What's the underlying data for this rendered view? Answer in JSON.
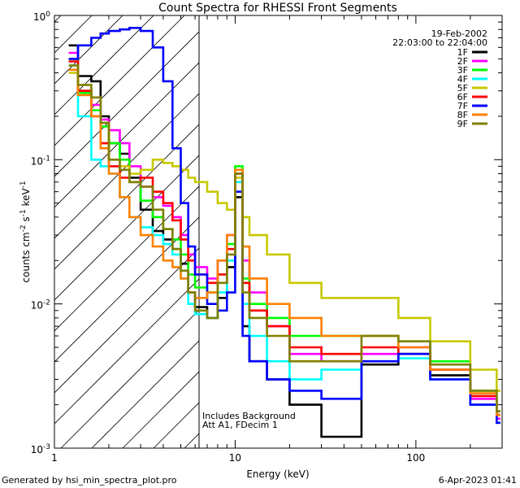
{
  "chart_data": {
    "type": "line",
    "title": "Count Spectra for RHESSI Front Segments",
    "xlabel": "Energy (keV)",
    "ylabel_parts": {
      "base": "counts cm",
      "exp1": "-2",
      "mid1": " s",
      "exp2": "-1",
      "mid2": " keV",
      "exp3": "-1"
    },
    "xscale": "log",
    "yscale": "log",
    "xlim": [
      1,
      300
    ],
    "ylim": [
      0.001,
      1
    ],
    "x_ticks": [
      {
        "value": 1,
        "label": "1"
      },
      {
        "value": 10,
        "label": "10"
      },
      {
        "value": 100,
        "label": "100"
      }
    ],
    "y_ticks": [
      {
        "value": 1,
        "base": "10",
        "exp": "0"
      },
      {
        "value": 0.1,
        "base": "10",
        "exp": "-1"
      },
      {
        "value": 0.01,
        "base": "10",
        "exp": "-2"
      },
      {
        "value": 0.001,
        "base": "10",
        "exp": "-3"
      }
    ],
    "shaded_region": {
      "x_from": 1,
      "x_to": 6
    },
    "legend": {
      "date": "19-Feb-2002",
      "time_range": "22:03:00 to 22:04:00",
      "position": "top-right"
    },
    "series": [
      {
        "name": "1F",
        "color": "#000000",
        "points": [
          [
            1.2,
            0.62
          ],
          [
            1.35,
            0.38
          ],
          [
            1.6,
            0.35
          ],
          [
            1.8,
            0.2
          ],
          [
            2.0,
            0.13
          ],
          [
            2.3,
            0.11
          ],
          [
            2.6,
            0.075
          ],
          [
            3.0,
            0.045
          ],
          [
            3.5,
            0.032
          ],
          [
            4.0,
            0.028
          ],
          [
            4.5,
            0.024
          ],
          [
            5.0,
            0.019
          ],
          [
            5.5,
            0.012
          ],
          [
            6.0,
            0.0095
          ],
          [
            7,
            0.008
          ],
          [
            8,
            0.011
          ],
          [
            9,
            0.018
          ],
          [
            10,
            0.055
          ],
          [
            11,
            0.007
          ],
          [
            12,
            0.004
          ],
          [
            15,
            0.003
          ],
          [
            20,
            0.002
          ],
          [
            30,
            0.0012
          ],
          [
            50,
            0.0038
          ],
          [
            80,
            0.0045
          ],
          [
            120,
            0.0032
          ],
          [
            200,
            0.0022
          ],
          [
            280,
            0.0018
          ]
        ]
      },
      {
        "name": "2F",
        "color": "#ff00ff",
        "points": [
          [
            1.2,
            0.55
          ],
          [
            1.35,
            0.3
          ],
          [
            1.6,
            0.24
          ],
          [
            1.8,
            0.19
          ],
          [
            2.0,
            0.16
          ],
          [
            2.3,
            0.13
          ],
          [
            2.6,
            0.09
          ],
          [
            3.0,
            0.065
          ],
          [
            3.5,
            0.055
          ],
          [
            4.0,
            0.048
          ],
          [
            4.5,
            0.04
          ],
          [
            5.0,
            0.03
          ],
          [
            5.5,
            0.022
          ],
          [
            6.0,
            0.018
          ],
          [
            7,
            0.015
          ],
          [
            8,
            0.02
          ],
          [
            9,
            0.03
          ],
          [
            10,
            0.08
          ],
          [
            11,
            0.02
          ],
          [
            12,
            0.012
          ],
          [
            15,
            0.007
          ],
          [
            20,
            0.0045
          ],
          [
            30,
            0.004
          ],
          [
            50,
            0.0045
          ],
          [
            80,
            0.005
          ],
          [
            120,
            0.0035
          ],
          [
            200,
            0.0022
          ],
          [
            280,
            0.0016
          ]
        ]
      },
      {
        "name": "3F",
        "color": "#00ff00",
        "points": [
          [
            1.2,
            0.5
          ],
          [
            1.35,
            0.29
          ],
          [
            1.6,
            0.22
          ],
          [
            1.8,
            0.17
          ],
          [
            2.0,
            0.13
          ],
          [
            2.3,
            0.1
          ],
          [
            2.6,
            0.07
          ],
          [
            3.0,
            0.052
          ],
          [
            3.5,
            0.04
          ],
          [
            4.0,
            0.033
          ],
          [
            4.5,
            0.028
          ],
          [
            5.0,
            0.022
          ],
          [
            5.5,
            0.016
          ],
          [
            6.0,
            0.013
          ],
          [
            7,
            0.012
          ],
          [
            8,
            0.016
          ],
          [
            9,
            0.026
          ],
          [
            10,
            0.09
          ],
          [
            11,
            0.015
          ],
          [
            12,
            0.01
          ],
          [
            15,
            0.008
          ],
          [
            20,
            0.006
          ],
          [
            30,
            0.006
          ],
          [
            50,
            0.006
          ],
          [
            80,
            0.0055
          ],
          [
            120,
            0.004
          ],
          [
            200,
            0.0025
          ],
          [
            280,
            0.0018
          ]
        ]
      },
      {
        "name": "4F",
        "color": "#00ffff",
        "points": [
          [
            1.2,
            0.45
          ],
          [
            1.35,
            0.2
          ],
          [
            1.6,
            0.1
          ],
          [
            1.8,
            0.09
          ],
          [
            2.0,
            0.08
          ],
          [
            2.3,
            0.055
          ],
          [
            2.6,
            0.04
          ],
          [
            3.0,
            0.034
          ],
          [
            3.5,
            0.03
          ],
          [
            4.0,
            0.026
          ],
          [
            4.5,
            0.022
          ],
          [
            5.0,
            0.015
          ],
          [
            5.5,
            0.01
          ],
          [
            6.0,
            0.0085
          ],
          [
            7,
            0.008
          ],
          [
            8,
            0.012
          ],
          [
            9,
            0.02
          ],
          [
            10,
            0.07
          ],
          [
            11,
            0.01
          ],
          [
            12,
            0.006
          ],
          [
            15,
            0.004
          ],
          [
            20,
            0.003
          ],
          [
            30,
            0.0035
          ],
          [
            50,
            0.004
          ],
          [
            80,
            0.0042
          ],
          [
            120,
            0.003
          ],
          [
            200,
            0.002
          ],
          [
            280,
            0.0015
          ]
        ]
      },
      {
        "name": "5F",
        "color": "#c8c800",
        "points": [
          [
            1.2,
            0.4
          ],
          [
            1.35,
            0.3
          ],
          [
            1.6,
            0.27
          ],
          [
            1.8,
            0.18
          ],
          [
            2.0,
            0.1
          ],
          [
            2.3,
            0.09
          ],
          [
            2.6,
            0.08
          ],
          [
            3.0,
            0.085
          ],
          [
            3.5,
            0.1
          ],
          [
            4.0,
            0.095
          ],
          [
            4.5,
            0.09
          ],
          [
            5.0,
            0.085
          ],
          [
            5.5,
            0.075
          ],
          [
            6.0,
            0.07
          ],
          [
            7,
            0.06
          ],
          [
            8,
            0.05
          ],
          [
            9,
            0.045
          ],
          [
            10,
            0.075
          ],
          [
            11,
            0.04
          ],
          [
            12,
            0.03
          ],
          [
            15,
            0.022
          ],
          [
            20,
            0.014
          ],
          [
            30,
            0.011
          ],
          [
            50,
            0.011
          ],
          [
            80,
            0.008
          ],
          [
            120,
            0.0055
          ],
          [
            200,
            0.0035
          ],
          [
            280,
            0.0025
          ]
        ]
      },
      {
        "name": "6F",
        "color": "#ff0000",
        "points": [
          [
            1.2,
            0.48
          ],
          [
            1.35,
            0.3
          ],
          [
            1.6,
            0.2
          ],
          [
            1.8,
            0.13
          ],
          [
            2.0,
            0.09
          ],
          [
            2.3,
            0.075
          ],
          [
            2.6,
            0.07
          ],
          [
            3.0,
            0.075
          ],
          [
            3.5,
            0.06
          ],
          [
            4.0,
            0.05
          ],
          [
            4.5,
            0.038
          ],
          [
            5.0,
            0.028
          ],
          [
            5.5,
            0.02
          ],
          [
            6.0,
            0.016
          ],
          [
            7,
            0.014
          ],
          [
            8,
            0.016
          ],
          [
            9,
            0.024
          ],
          [
            10,
            0.08
          ],
          [
            11,
            0.014
          ],
          [
            12,
            0.009
          ],
          [
            15,
            0.007
          ],
          [
            20,
            0.005
          ],
          [
            30,
            0.0045
          ],
          [
            50,
            0.005
          ],
          [
            80,
            0.0045
          ],
          [
            120,
            0.0035
          ],
          [
            200,
            0.0023
          ],
          [
            280,
            0.0017
          ]
        ]
      },
      {
        "name": "7F",
        "color": "#0000ff",
        "points": [
          [
            1.2,
            0.5
          ],
          [
            1.35,
            0.62
          ],
          [
            1.6,
            0.7
          ],
          [
            1.8,
            0.75
          ],
          [
            2.0,
            0.78
          ],
          [
            2.3,
            0.8
          ],
          [
            2.6,
            0.82
          ],
          [
            3.0,
            0.78
          ],
          [
            3.5,
            0.6
          ],
          [
            4.0,
            0.35
          ],
          [
            4.5,
            0.12
          ],
          [
            5.0,
            0.05
          ],
          [
            5.5,
            0.025
          ],
          [
            6.0,
            0.016
          ],
          [
            7,
            0.01
          ],
          [
            8,
            0.009
          ],
          [
            9,
            0.012
          ],
          [
            10,
            0.06
          ],
          [
            11,
            0.006
          ],
          [
            12,
            0.004
          ],
          [
            15,
            0.003
          ],
          [
            20,
            0.0025
          ],
          [
            30,
            0.0022
          ],
          [
            50,
            0.004
          ],
          [
            80,
            0.0045
          ],
          [
            120,
            0.003
          ],
          [
            200,
            0.002
          ],
          [
            280,
            0.0015
          ]
        ]
      },
      {
        "name": "8F",
        "color": "#ff8000",
        "points": [
          [
            1.2,
            0.42
          ],
          [
            1.35,
            0.28
          ],
          [
            1.6,
            0.2
          ],
          [
            1.8,
            0.12
          ],
          [
            2.0,
            0.08
          ],
          [
            2.3,
            0.055
          ],
          [
            2.6,
            0.04
          ],
          [
            3.0,
            0.03
          ],
          [
            3.5,
            0.025
          ],
          [
            4.0,
            0.02
          ],
          [
            4.5,
            0.018
          ],
          [
            5.0,
            0.015
          ],
          [
            5.5,
            0.012
          ],
          [
            6.0,
            0.011
          ],
          [
            7,
            0.012
          ],
          [
            8,
            0.02
          ],
          [
            9,
            0.03
          ],
          [
            10,
            0.085
          ],
          [
            11,
            0.025
          ],
          [
            12,
            0.015
          ],
          [
            15,
            0.01
          ],
          [
            20,
            0.008
          ],
          [
            30,
            0.006
          ],
          [
            50,
            0.006
          ],
          [
            80,
            0.005
          ],
          [
            120,
            0.0035
          ],
          [
            200,
            0.0024
          ],
          [
            280,
            0.0017
          ]
        ]
      },
      {
        "name": "9F",
        "color": "#808000",
        "points": [
          [
            1.2,
            0.45
          ],
          [
            1.35,
            0.33
          ],
          [
            1.6,
            0.27
          ],
          [
            1.8,
            0.18
          ],
          [
            2.0,
            0.1
          ],
          [
            2.3,
            0.085
          ],
          [
            2.6,
            0.07
          ],
          [
            3.0,
            0.065
          ],
          [
            3.5,
            0.045
          ],
          [
            4.0,
            0.033
          ],
          [
            4.5,
            0.024
          ],
          [
            5.0,
            0.017
          ],
          [
            5.5,
            0.012
          ],
          [
            6.0,
            0.009
          ],
          [
            7,
            0.008
          ],
          [
            8,
            0.014
          ],
          [
            9,
            0.022
          ],
          [
            10,
            0.08
          ],
          [
            11,
            0.012
          ],
          [
            12,
            0.008
          ],
          [
            15,
            0.006
          ],
          [
            20,
            0.004
          ],
          [
            30,
            0.004
          ],
          [
            50,
            0.006
          ],
          [
            80,
            0.0055
          ],
          [
            120,
            0.0038
          ],
          [
            200,
            0.0025
          ],
          [
            280,
            0.0018
          ]
        ]
      }
    ],
    "annotations": [
      "Includes Background",
      "Att A1, FDecim 1"
    ]
  },
  "footer": {
    "left": "Generated by hsi_min_spectra_plot.pro",
    "right": "6-Apr-2023 01:41"
  }
}
